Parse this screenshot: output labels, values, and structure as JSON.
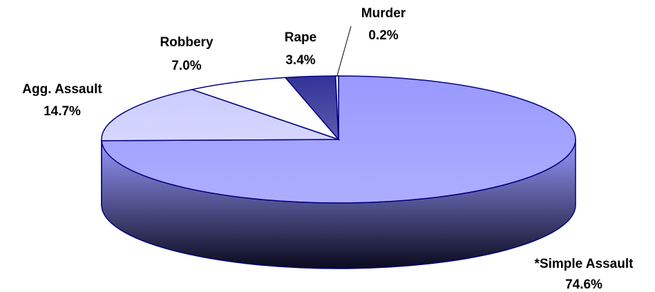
{
  "chart_data": {
    "type": "pie",
    "categories": [
      "*Simple Assault",
      "Agg. Assault",
      "Robbery",
      "Rape",
      "Murder"
    ],
    "values": [
      74.6,
      14.7,
      7.0,
      3.4,
      0.2
    ],
    "value_labels": [
      "74.6%",
      "14.7%",
      "7.0%",
      "3.4%",
      "0.2%"
    ],
    "colors": [
      "#9999ff",
      "#ccccff",
      "#ffffff",
      "#333399",
      "#ffffff"
    ]
  }
}
